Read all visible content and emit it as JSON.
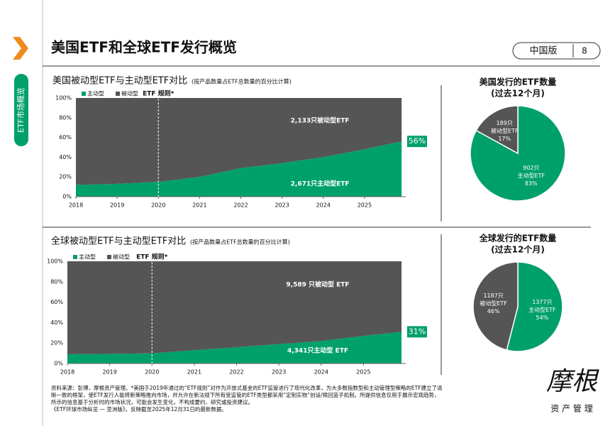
{
  "header": {
    "title": "美国ETF和全球ETF发行概览",
    "badge": "中国版",
    "page": "8"
  },
  "side_tab": "ETF市场概览",
  "chart_data": [
    {
      "type": "area",
      "title": "美国被动型ETF与主动型ETF对比",
      "note": "(按产品数量占ETF总数量的百分比计算)",
      "x": [
        2018,
        2019,
        2020,
        2021,
        2022,
        2023,
        2024,
        2025,
        2025.9
      ],
      "xlim": [
        2018,
        2026
      ],
      "xticks": [
        2018,
        2019,
        2020,
        2021,
        2022,
        2023,
        2024,
        2025
      ],
      "ylim": [
        0,
        100
      ],
      "yticks": [
        {
          "value": 0,
          "label": "0%"
        },
        {
          "value": 20,
          "label": "20%"
        },
        {
          "value": 40,
          "label": "40%"
        },
        {
          "value": 60,
          "label": "60%"
        },
        {
          "value": 80,
          "label": "80%"
        },
        {
          "value": 100,
          "label": "100%"
        }
      ],
      "grid": false,
      "rule": {
        "x": 2020,
        "label": "ETF 规则*"
      },
      "series": [
        {
          "name": "主动型",
          "color": "#00a06b",
          "label": "2,671只主动型ETF",
          "values": [
            12,
            13,
            15,
            20,
            29,
            34,
            40,
            48,
            56
          ],
          "value_labels": [
            null,
            null,
            null,
            null,
            null,
            null,
            null,
            null,
            "56%"
          ]
        },
        {
          "name": "被动型",
          "color": "#555555",
          "label": "2,133只被动型ETF",
          "values": [
            88,
            87,
            85,
            80,
            71,
            66,
            60,
            52,
            44
          ]
        }
      ]
    },
    {
      "type": "pie",
      "title": "美国发行的ETF数量",
      "subtitle": "(过去12个月)",
      "categories": [
        "主动型ETF",
        "被动型ETF"
      ],
      "values": [
        83,
        17
      ],
      "value_labels": [
        "83%",
        "17%"
      ],
      "count_labels": [
        "902只",
        "189只"
      ],
      "colors": [
        "#00a06b",
        "#555555"
      ]
    },
    {
      "type": "area",
      "title": "全球被动型ETF与主动型ETF对比",
      "note": "(按产品数量占ETF总数量的百分比计算)",
      "x": [
        2018,
        2019,
        2020,
        2021,
        2022,
        2023,
        2024,
        2025,
        2025.9
      ],
      "xlim": [
        2018,
        2026
      ],
      "xticks": [
        2018,
        2019,
        2020,
        2021,
        2022,
        2023,
        2024,
        2025
      ],
      "ylim": [
        0,
        100
      ],
      "yticks": [
        {
          "value": 0,
          "label": "0%"
        },
        {
          "value": 20,
          "label": "20%"
        },
        {
          "value": 40,
          "label": "40%"
        },
        {
          "value": 60,
          "label": "60%"
        },
        {
          "value": 80,
          "label": "80%"
        },
        {
          "value": 100,
          "label": "100%"
        }
      ],
      "grid": false,
      "rule": {
        "x": 2020,
        "label": "ETF 规则*"
      },
      "series": [
        {
          "name": "主动型",
          "color": "#00a06b",
          "label": "4,341只主动型 ETF",
          "values": [
            9,
            9.5,
            10,
            13,
            16,
            19,
            22,
            27,
            31
          ],
          "value_labels": [
            null,
            null,
            null,
            null,
            null,
            null,
            null,
            null,
            "31%"
          ]
        },
        {
          "name": "被动型",
          "color": "#555555",
          "label": "9,589 只被动型 ETF",
          "values": [
            91,
            90.5,
            90,
            87,
            84,
            81,
            78,
            73,
            69
          ]
        }
      ]
    },
    {
      "type": "pie",
      "title": "全球发行的ETF数量",
      "subtitle": "(过去12个月)",
      "categories": [
        "主动型ETF",
        "被动型ETF"
      ],
      "values": [
        54,
        46
      ],
      "value_labels": [
        "54%",
        "46%"
      ],
      "count_labels": [
        "1377只",
        "1187只"
      ],
      "colors": [
        "#00a06b",
        "#555555"
      ]
    }
  ],
  "footer": [
    "资料来源：彭博，摩根资产管理。*美国于2019年通过的“ETF规则”对作为开放式基金的ETF监管进行了现代化改革，为大多数指数型和主动管理型策略的ETF建立了清",
    "晰一致的框架，使ETF发行人能将新策略推向市场，并允许在新法规下所有受监管的ETF类型都采用“定制实物”创设/赎回篮子机制。所提供信息仅用于展示宏观趋势，",
    "所示的信息基于分析时的市场状况，可能会发生变化，不构成要约、研究或投资建议。",
    "《ETF环球市场纵览 — 亚洲版》。反映截至2025年12月31日的最新数据。"
  ],
  "logo": {
    "name": "摩根",
    "sub": "资 产 管 理"
  }
}
